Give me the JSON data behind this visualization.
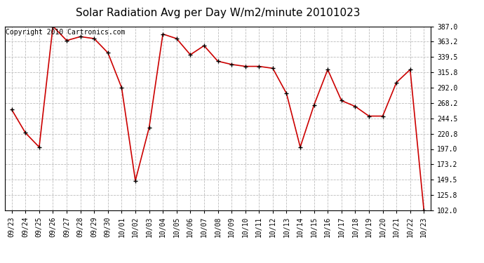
{
  "title": "Solar Radiation Avg per Day W/m2/minute 20101023",
  "copyright": "Copyright 2010 Cartronics.com",
  "labels": [
    "09/23",
    "09/24",
    "09/25",
    "09/26",
    "09/27",
    "09/28",
    "09/29",
    "09/30",
    "10/01",
    "10/02",
    "10/03",
    "10/04",
    "10/05",
    "10/06",
    "10/07",
    "10/08",
    "10/09",
    "10/10",
    "10/11",
    "10/12",
    "10/13",
    "10/14",
    "10/15",
    "10/16",
    "10/17",
    "10/18",
    "10/19",
    "10/20",
    "10/21",
    "10/22",
    "10/23"
  ],
  "values": [
    258,
    222,
    200,
    387,
    365,
    371,
    368,
    346,
    292,
    148,
    230,
    375,
    368,
    343,
    357,
    333,
    328,
    325,
    325,
    322,
    283,
    200,
    265,
    320,
    272,
    263,
    248,
    248,
    300,
    320,
    102
  ],
  "line_color": "#cc0000",
  "marker_color": "#000000",
  "bg_color": "#ffffff",
  "grid_color": "#bbbbbb",
  "ylim_min": 102.0,
  "ylim_max": 387.0,
  "yticks": [
    102.0,
    125.8,
    149.5,
    173.2,
    197.0,
    220.8,
    244.5,
    268.2,
    292.0,
    315.8,
    339.5,
    363.2,
    387.0
  ],
  "title_fontsize": 11,
  "copyright_fontsize": 7,
  "tick_fontsize": 7
}
